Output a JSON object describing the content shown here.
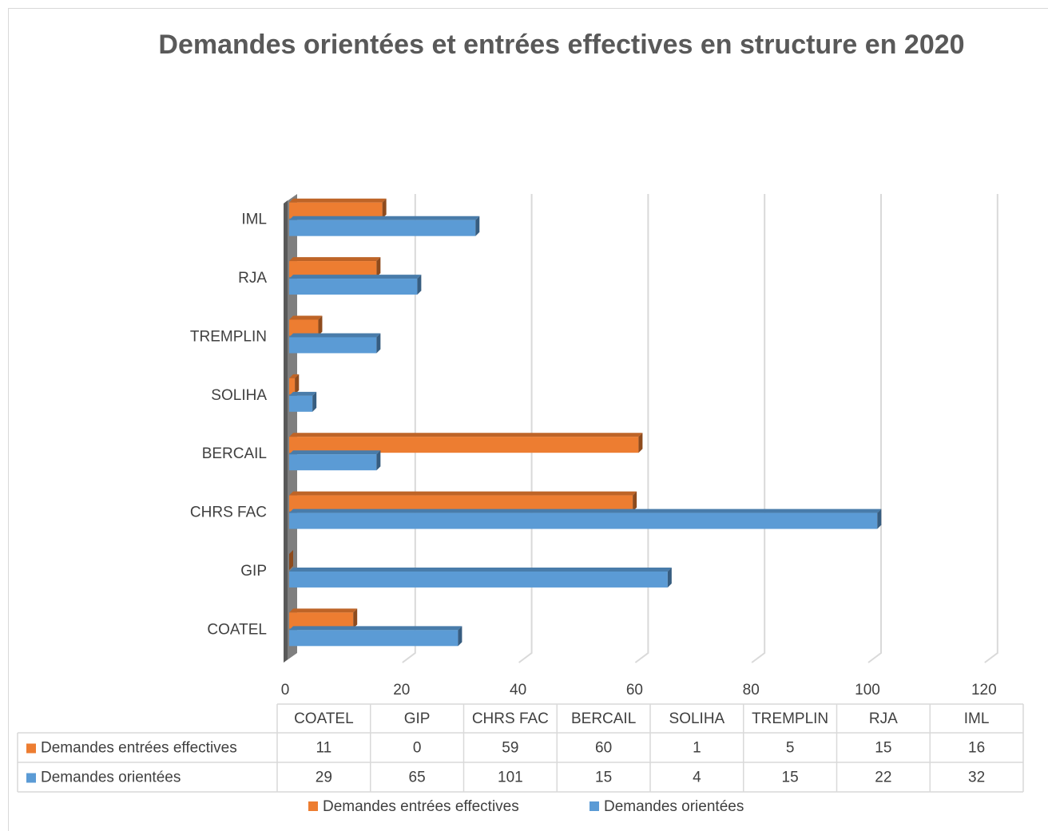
{
  "chart_data": {
    "type": "bar",
    "orientation": "horizontal",
    "title": "Demandes orientées et entrées effectives en structure en 2020",
    "categories": [
      "COATEL",
      "GIP",
      "CHRS FAC",
      "BERCAIL",
      "SOLIHA",
      "TREMPLIN",
      "RJA",
      "IML"
    ],
    "series": [
      {
        "name": "Demandes entrées effectives",
        "color": "#ed7d31",
        "values": [
          11,
          0,
          59,
          60,
          1,
          5,
          15,
          16
        ]
      },
      {
        "name": "Demandes orientées",
        "color": "#5b9bd5",
        "values": [
          29,
          65,
          101,
          15,
          4,
          15,
          22,
          32
        ]
      }
    ],
    "xlim": [
      0,
      120
    ],
    "xticks": [
      0,
      20,
      40,
      60,
      80,
      100,
      120
    ],
    "grid": true,
    "legend": "bottom",
    "data_table": true
  }
}
